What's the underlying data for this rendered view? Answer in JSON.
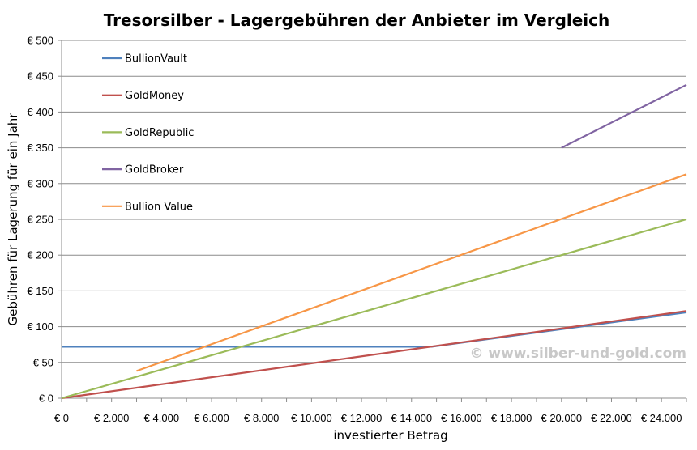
{
  "chart_data": {
    "type": "line",
    "title": "Tresorsilber - Lagergebühren der Anbieter im Vergleich",
    "xlabel": "investierter Betrag",
    "ylabel": "Gebühren für Lagerung für ein Jahr",
    "xlim": [
      0,
      25000
    ],
    "ylim": [
      0,
      500
    ],
    "x_ticks": [
      0,
      2000,
      4000,
      6000,
      8000,
      10000,
      12000,
      14000,
      16000,
      18000,
      20000,
      22000,
      24000
    ],
    "x_tick_labels": [
      "€ 0",
      "€ 2.000",
      "€ 4.000",
      "€ 6.000",
      "€ 8.000",
      "€ 10.000",
      "€ 12.000",
      "€ 14.000",
      "€ 16.000",
      "€ 18.000",
      "€ 20.000",
      "€ 22.000",
      "€ 24.000"
    ],
    "y_ticks": [
      0,
      50,
      100,
      150,
      200,
      250,
      300,
      350,
      400,
      450,
      500
    ],
    "y_tick_labels": [
      "€ 0",
      "€ 50",
      "€ 100",
      "€ 150",
      "€ 200",
      "€ 250",
      "€ 300",
      "€ 350",
      "€ 400",
      "€ 450",
      "€ 500"
    ],
    "grid": "horizontal",
    "legend_position": "top-left",
    "series": [
      {
        "name": "BullionVault",
        "color": "#4f81bd",
        "points": [
          [
            0,
            72
          ],
          [
            14800,
            72
          ],
          [
            25000,
            120
          ]
        ]
      },
      {
        "name": "GoldMoney",
        "color": "#c0504d",
        "points": [
          [
            0,
            0
          ],
          [
            25000,
            122
          ]
        ]
      },
      {
        "name": "GoldRepublic",
        "color": "#9bbb59",
        "points": [
          [
            0,
            0
          ],
          [
            25000,
            250
          ]
        ]
      },
      {
        "name": "GoldBroker",
        "color": "#8064a2",
        "points": [
          [
            20000,
            350
          ],
          [
            25000,
            438
          ]
        ]
      },
      {
        "name": "Bullion Value",
        "color": "#f79646",
        "points": [
          [
            3000,
            38
          ],
          [
            25000,
            313
          ]
        ]
      }
    ]
  },
  "watermark": "© www.silber-und-gold.com"
}
